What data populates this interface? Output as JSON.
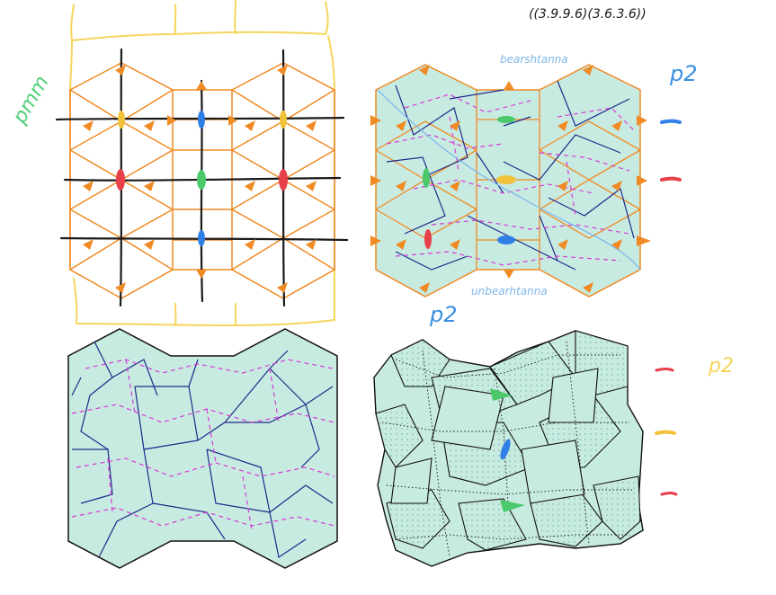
{
  "annotations": {
    "title_notation": "((3.9.9.6)(3.6.3.6))",
    "pmm_label": "pmm",
    "p2_top_right": "p2",
    "p2_under_panel": "p2",
    "p2_bottom_right": "p2",
    "top_scribble": "bearshtanna",
    "bottom_scribble": "unbearhtanna"
  },
  "colors": {
    "orange_grid": "#f08a24",
    "yellow_sketch": "#f6d55c",
    "black_axes": "#1a1a1a",
    "tile_fill": "#c8ebe1",
    "crease_blue": "#1e2a8a",
    "crease_magenta": "#d63bd6",
    "marker_red": "#e8404a",
    "marker_green": "#4ac86a",
    "marker_blue": "#2f7fe6",
    "marker_yellow": "#f2c23a",
    "label_green": "#4fd07a",
    "label_blue": "#3a8fe0"
  }
}
